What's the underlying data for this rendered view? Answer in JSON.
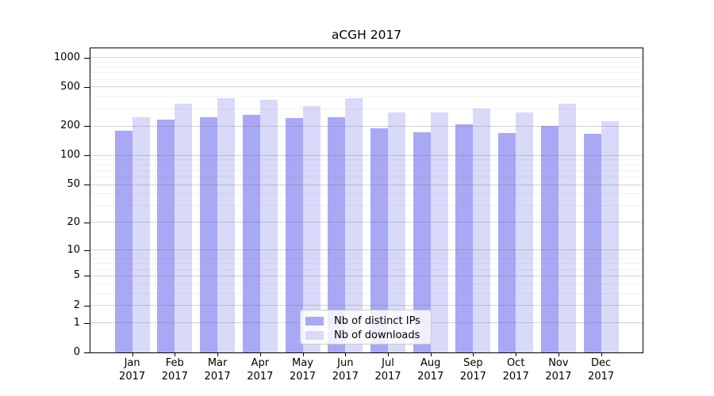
{
  "figure_title": "aCGH 2017",
  "chart_data": {
    "type": "bar",
    "title": "aCGH 2017",
    "categories": [
      "Jan 2017",
      "Feb 2017",
      "Mar 2017",
      "Apr 2017",
      "May 2017",
      "Jun 2017",
      "Jul 2017",
      "Aug 2017",
      "Sep 2017",
      "Oct 2017",
      "Nov 2017",
      "Dec 2017"
    ],
    "x_tick_months": [
      "Jan",
      "Feb",
      "Mar",
      "Apr",
      "May",
      "Jun",
      "Jul",
      "Aug",
      "Sep",
      "Oct",
      "Nov",
      "Dec"
    ],
    "x_tick_year": "2017",
    "series": [
      {
        "name": "Nb of distinct IPs",
        "color": "#a8a8f5",
        "values": [
          178,
          232,
          246,
          262,
          241,
          246,
          191,
          173,
          208,
          171,
          201,
          168
        ]
      },
      {
        "name": "Nb of downloads",
        "color": "#d9d9f9",
        "values": [
          245,
          338,
          386,
          371,
          322,
          383,
          274,
          275,
          302,
          277,
          337,
          223
        ]
      }
    ],
    "yscale": "symlog",
    "xlabel": "",
    "ylabel": "",
    "ylim": [
      0,
      1235
    ],
    "y_ticks": [
      0,
      1,
      2,
      5,
      10,
      20,
      50,
      100,
      200,
      500,
      1000
    ],
    "y_minor_gridlines": [
      3,
      4,
      6,
      7,
      8,
      9,
      30,
      40,
      60,
      70,
      80,
      90,
      300,
      400,
      600,
      700,
      800,
      900
    ],
    "grid": true,
    "legend_position": "inside-bottom-center"
  },
  "colors": {
    "bar_distinct_ips": "#a8a8f5",
    "bar_downloads": "#d9d9f9",
    "spine": "#000000",
    "legend_border": "#cccccc"
  }
}
